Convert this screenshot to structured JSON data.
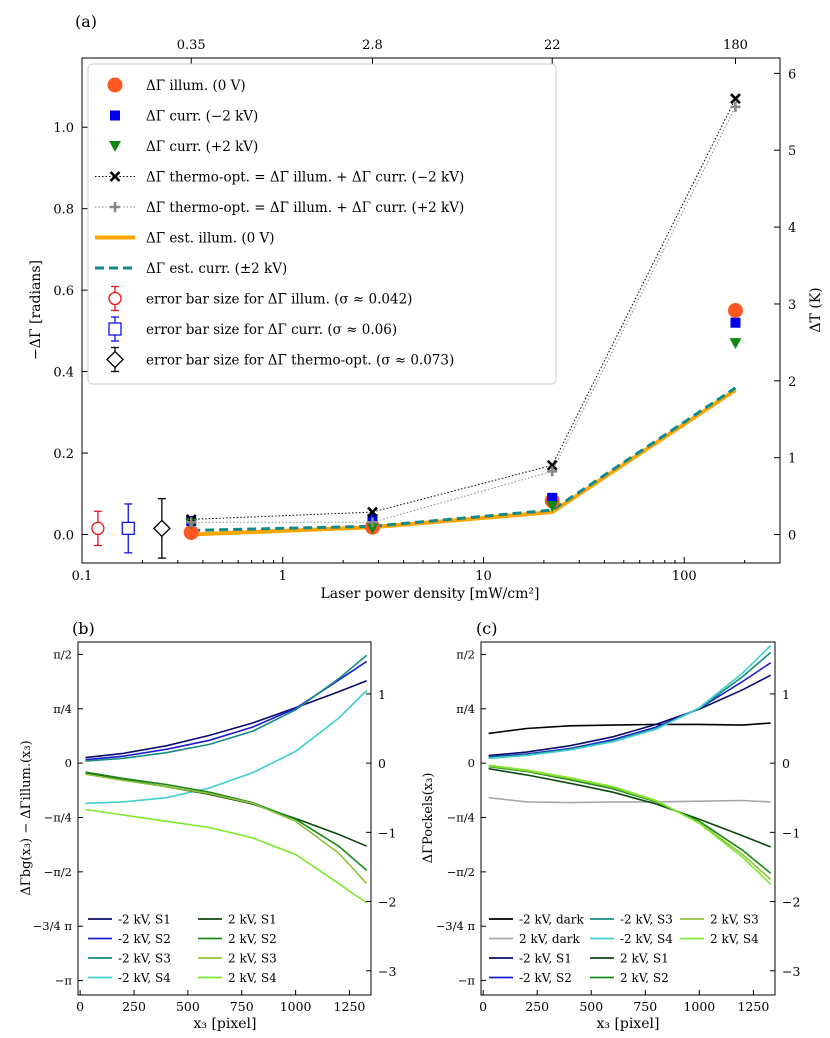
{
  "chart_data": [
    {
      "panel": "(a)",
      "type": "scatter+line",
      "xlabel": "Laser power density [mW/cm²]",
      "ylabel": "−ΔΓ [radians]",
      "y2label": "ΔT (K)",
      "xscale": "log",
      "xlim": [
        0.1,
        300
      ],
      "ylim": [
        -0.07,
        1.17
      ],
      "y2lim": [
        -0.37,
        6.2
      ],
      "x_ticks": [
        "0.1",
        "1",
        "10",
        "100"
      ],
      "y_ticks": [
        "0.0",
        "0.2",
        "0.4",
        "0.6",
        "0.8",
        "1.0"
      ],
      "y2_ticks": [
        "0",
        "1",
        "2",
        "3",
        "4",
        "5",
        "6"
      ],
      "top_ticks": [
        "0.35",
        "2.8",
        "22",
        "180"
      ],
      "x": [
        0.35,
        2.8,
        22,
        180
      ],
      "series": [
        {
          "name": "ΔΓ̄ illum. (0 V)",
          "values": [
            0.005,
            0.018,
            0.083,
            0.55
          ],
          "color": "#ff5722",
          "marker": "circle"
        },
        {
          "name": "ΔΓ curr. (−2 kV)",
          "values": [
            0.033,
            0.038,
            0.09,
            0.52
          ],
          "color": "#0000ee",
          "marker": "square"
        },
        {
          "name": "ΔΓ curr. (+2 kV)",
          "values": [
            0.027,
            0.016,
            0.07,
            0.47
          ],
          "color": "#118811",
          "marker": "triangle"
        },
        {
          "name": "ΔΓ̄ thermo-opt. = ΔΓ̄ illum. + ΔΓ curr. (−2 kV)",
          "values": [
            0.037,
            0.055,
            0.17,
            1.07
          ],
          "color": "#000000",
          "marker": "x"
        },
        {
          "name": "ΔΓ̄ thermo-opt. = ΔΓ̄ illum. + ΔΓ curr. (+2 kV)",
          "values": [
            0.03,
            0.03,
            0.155,
            1.05
          ],
          "color": "#888888",
          "marker": "plus"
        },
        {
          "name": "ΔΓ̄ est. illum. (0 V)",
          "values": [
            0.0,
            0.018,
            0.055,
            0.355
          ],
          "color": "#ffa500",
          "marker": "line"
        },
        {
          "name": "ΔΓ est. curr. (±2 kV)",
          "values": [
            0.01,
            0.02,
            0.06,
            0.36
          ],
          "color": "#138a8a",
          "marker": "dashed"
        }
      ],
      "error_bars": [
        {
          "name": "error bar size for ΔΓ̄ illum. (σ ≈ 0.042)",
          "x": 0.12,
          "y": 0.015,
          "sigma": 0.042,
          "color": "#ee1111"
        },
        {
          "name": "error bar size for ΔΓ curr. (σ ≈ 0.06)",
          "x": 0.17,
          "y": 0.015,
          "sigma": 0.06,
          "color": "#1111ee"
        },
        {
          "name": "error bar size for ΔΓ̄ thermo-opt. (σ ≈ 0.073)",
          "x": 0.25,
          "y": 0.015,
          "sigma": 0.073,
          "color": "#000000"
        }
      ]
    },
    {
      "panel": "(b)",
      "type": "line",
      "xlabel": "x₃ [pixel]",
      "ylabel": "ΔΓbg(x₃) − ΔΓillum.(x₃)",
      "xlim": [
        -10,
        1350
      ],
      "ylim": [
        -3.35,
        1.75
      ],
      "x_ticks": [
        "0",
        "250",
        "500",
        "750",
        "1000",
        "1250"
      ],
      "y_ticks": [
        "π/2",
        "π/4",
        "0",
        "−π/4",
        "−π/2",
        "−3/4 π",
        "−π"
      ],
      "y2_ticks": [
        "1",
        "0",
        "−1",
        "−2",
        "−3"
      ],
      "x": [
        25,
        200,
        400,
        600,
        800,
        1000,
        1200,
        1330
      ],
      "series": [
        {
          "name": "-2 kV, S1",
          "values": [
            0.08,
            0.14,
            0.25,
            0.4,
            0.58,
            0.8,
            1.03,
            1.19
          ],
          "color": "#0b0b6b"
        },
        {
          "name": "-2 kV, S2",
          "values": [
            0.05,
            0.1,
            0.2,
            0.33,
            0.52,
            0.79,
            1.2,
            1.47
          ],
          "color": "#1d1dd0"
        },
        {
          "name": "-2 kV, S3",
          "values": [
            0.03,
            0.07,
            0.15,
            0.27,
            0.46,
            0.77,
            1.22,
            1.56
          ],
          "color": "#178b85"
        },
        {
          "name": "-2 kV, S4",
          "values": [
            -0.58,
            -0.56,
            -0.5,
            -0.36,
            -0.14,
            0.17,
            0.65,
            1.05
          ],
          "color": "#3fcfcf"
        },
        {
          "name": "2 kV, S1",
          "values": [
            -0.14,
            -0.24,
            -0.34,
            -0.45,
            -0.59,
            -0.8,
            -1.03,
            -1.2
          ],
          "color": "#0c4a0c"
        },
        {
          "name": "2 kV, S2",
          "values": [
            -0.13,
            -0.22,
            -0.31,
            -0.42,
            -0.57,
            -0.81,
            -1.2,
            -1.55
          ],
          "color": "#1a8a1a"
        },
        {
          "name": "2 kV, S3",
          "values": [
            -0.16,
            -0.25,
            -0.34,
            -0.44,
            -0.58,
            -0.84,
            -1.3,
            -1.74
          ],
          "color": "#8fc33a"
        },
        {
          "name": "2 kV, S4",
          "values": [
            -0.67,
            -0.75,
            -0.84,
            -0.93,
            -1.08,
            -1.32,
            -1.74,
            -2.02
          ],
          "color": "#7de82e"
        }
      ]
    },
    {
      "panel": "(c)",
      "type": "line",
      "xlabel": "x₃ [pixel]",
      "ylabel": "ΔΓPockels(x₃)",
      "xlim": [
        -10,
        1350
      ],
      "ylim": [
        -3.35,
        1.75
      ],
      "x_ticks": [
        "0",
        "250",
        "500",
        "750",
        "1000",
        "1250"
      ],
      "y_ticks": [
        "π/2",
        "π/4",
        "0",
        "−π/4",
        "−π/2",
        "−3/4 π",
        "−π"
      ],
      "y2_ticks": [
        "1",
        "0",
        "−1",
        "−2",
        "−3"
      ],
      "x": [
        25,
        200,
        400,
        600,
        800,
        1000,
        1200,
        1330
      ],
      "series": [
        {
          "name": "-2 kV, dark",
          "values": [
            0.43,
            0.5,
            0.54,
            0.55,
            0.56,
            0.56,
            0.55,
            0.58
          ],
          "color": "#000000"
        },
        {
          "name": "2 kV, dark",
          "values": [
            -0.5,
            -0.56,
            -0.57,
            -0.56,
            -0.56,
            -0.55,
            -0.54,
            -0.56
          ],
          "color": "#a8a8a8"
        },
        {
          "name": "-2 kV, S1",
          "values": [
            0.11,
            0.16,
            0.25,
            0.38,
            0.56,
            0.78,
            1.06,
            1.27
          ],
          "color": "#0b0b6b"
        },
        {
          "name": "-2 kV, S2",
          "values": [
            0.09,
            0.13,
            0.21,
            0.34,
            0.52,
            0.79,
            1.18,
            1.45
          ],
          "color": "#1d1dd0"
        },
        {
          "name": "-2 kV, S3",
          "values": [
            0.08,
            0.12,
            0.2,
            0.32,
            0.5,
            0.79,
            1.25,
            1.6
          ],
          "color": "#178b85"
        },
        {
          "name": "-2 kV, S4",
          "values": [
            0.07,
            0.11,
            0.19,
            0.31,
            0.49,
            0.8,
            1.3,
            1.7
          ],
          "color": "#3fcfcf"
        },
        {
          "name": "2 kV, S1",
          "values": [
            -0.08,
            -0.17,
            -0.29,
            -0.42,
            -0.59,
            -0.81,
            -1.05,
            -1.21
          ],
          "color": "#0c4a0c"
        },
        {
          "name": "2 kV, S2",
          "values": [
            -0.05,
            -0.12,
            -0.24,
            -0.37,
            -0.56,
            -0.84,
            -1.26,
            -1.59
          ],
          "color": "#1a8a1a"
        },
        {
          "name": "2 kV, S3",
          "values": [
            -0.04,
            -0.11,
            -0.22,
            -0.35,
            -0.55,
            -0.86,
            -1.32,
            -1.68
          ],
          "color": "#8fc33a"
        },
        {
          "name": "2 kV, S4",
          "values": [
            -0.03,
            -0.1,
            -0.21,
            -0.34,
            -0.54,
            -0.87,
            -1.36,
            -1.75
          ],
          "color": "#7de82e"
        }
      ]
    }
  ]
}
